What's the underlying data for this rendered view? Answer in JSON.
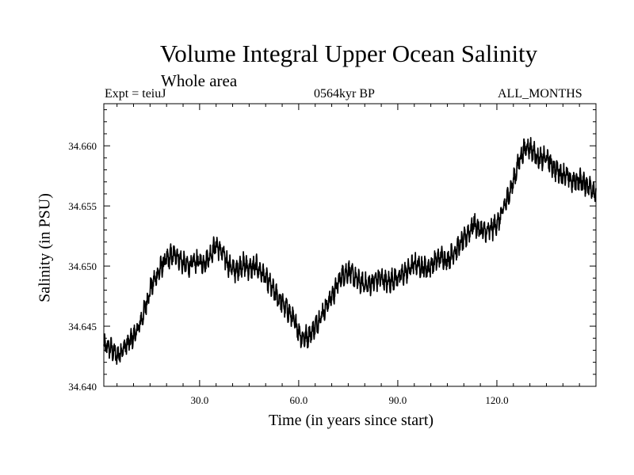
{
  "chart_data": {
    "type": "line",
    "title": "Volume Integral Upper Ocean Salinity",
    "subtitle": "Whole area",
    "experiment": "Expt = teiuJ",
    "period": "0564kyr BP",
    "months": "ALL_MONTHS",
    "xlabel": "Time (in years since start)",
    "ylabel": "Salinity (in PSU)",
    "xlim": [
      1,
      150
    ],
    "ylim": [
      34.64,
      34.6635
    ],
    "x_ticks": [
      30,
      60,
      90,
      120
    ],
    "x_tick_labels": [
      "30.0",
      "60.0",
      "90.0",
      "120.0"
    ],
    "y_ticks": [
      34.64,
      34.645,
      34.65,
      34.655,
      34.66
    ],
    "y_tick_labels": [
      "34.640",
      "34.645",
      "34.650",
      "34.655",
      "34.660"
    ],
    "series": [
      {
        "name": "Salinity",
        "color": "#000000",
        "x": [
          1,
          3,
          5,
          7,
          9,
          11,
          13,
          15,
          17,
          19,
          21,
          23,
          25,
          27,
          29,
          31,
          33,
          35,
          37,
          39,
          41,
          43,
          45,
          47,
          49,
          51,
          53,
          55,
          57,
          59,
          61,
          63,
          65,
          67,
          69,
          71,
          73,
          75,
          77,
          79,
          81,
          83,
          85,
          87,
          89,
          91,
          93,
          95,
          97,
          99,
          101,
          103,
          105,
          107,
          109,
          111,
          113,
          115,
          117,
          119,
          121,
          123,
          125,
          127,
          129,
          131,
          133,
          135,
          137,
          139,
          141,
          143,
          145,
          147,
          149,
          150
        ],
        "y": [
          34.6433,
          34.6432,
          34.6425,
          34.6432,
          34.6438,
          34.6445,
          34.646,
          34.648,
          34.6492,
          34.6502,
          34.6508,
          34.651,
          34.6502,
          34.65,
          34.6504,
          34.6502,
          34.6508,
          34.6518,
          34.651,
          34.65,
          34.6496,
          34.6502,
          34.6498,
          34.65,
          34.6494,
          34.6486,
          34.6476,
          34.647,
          34.6462,
          34.6452,
          34.644,
          34.6442,
          34.645,
          34.646,
          34.647,
          34.648,
          34.6492,
          34.6496,
          34.649,
          34.6486,
          34.6484,
          34.6488,
          34.649,
          34.6486,
          34.649,
          34.6492,
          34.6496,
          34.6502,
          34.65,
          34.6498,
          34.6503,
          34.6508,
          34.6505,
          34.6512,
          34.6518,
          34.6526,
          34.6535,
          34.653,
          34.6528,
          34.6532,
          34.654,
          34.6555,
          34.657,
          34.659,
          34.66,
          34.6596,
          34.6588,
          34.659,
          34.6582,
          34.6578,
          34.6575,
          34.657,
          34.6572,
          34.6568,
          34.6565,
          34.656
        ]
      }
    ]
  }
}
